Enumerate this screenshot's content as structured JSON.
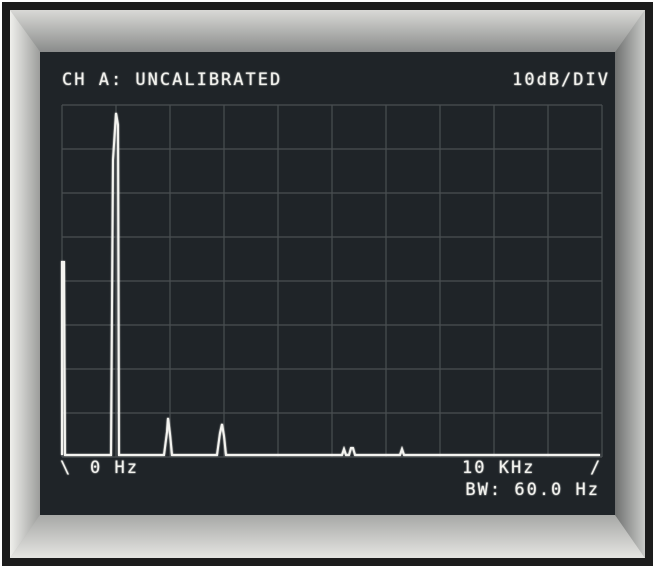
{
  "screen": {
    "channel": "CH A: UNCALIBRATED",
    "scale": "10dB/DIV",
    "start_marker": "\\",
    "start": "0 Hz",
    "stop": "10 KHz",
    "stop_marker": "/",
    "bandwidth": "BW: 60.0 Hz"
  }
}
